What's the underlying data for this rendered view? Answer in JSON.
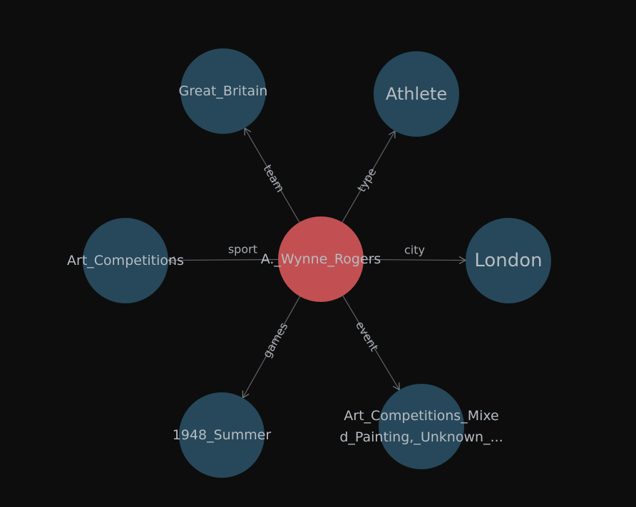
{
  "colors": {
    "background": "#0d0d0e",
    "center_node": "#c25052",
    "leaf_node": "#26485a",
    "edge": "#5f6266",
    "label": "#b7bcc2"
  },
  "center": {
    "label": "A._Wynne_Rogers"
  },
  "nodes": [
    {
      "id": "great-britain",
      "label_lines": [
        "Great_Britain"
      ]
    },
    {
      "id": "athlete",
      "label_lines": [
        "Athlete"
      ]
    },
    {
      "id": "art-competitions",
      "label_lines": [
        "Art_Competitions"
      ]
    },
    {
      "id": "london",
      "label_lines": [
        "London"
      ]
    },
    {
      "id": "1948-summer",
      "label_lines": [
        "1948_Summer"
      ]
    },
    {
      "id": "art-competitions-mixed",
      "label_lines": [
        "Art_Competitions_Mixe",
        "d_Painting,_Unknown_..."
      ]
    }
  ],
  "edges": [
    {
      "to": "great-britain",
      "label": "team"
    },
    {
      "to": "athlete",
      "label": "type"
    },
    {
      "to": "art-competitions",
      "label": "sport"
    },
    {
      "to": "london",
      "label": "city"
    },
    {
      "to": "1948-summer",
      "label": "games"
    },
    {
      "to": "art-competitions-mixed",
      "label": "event"
    }
  ]
}
